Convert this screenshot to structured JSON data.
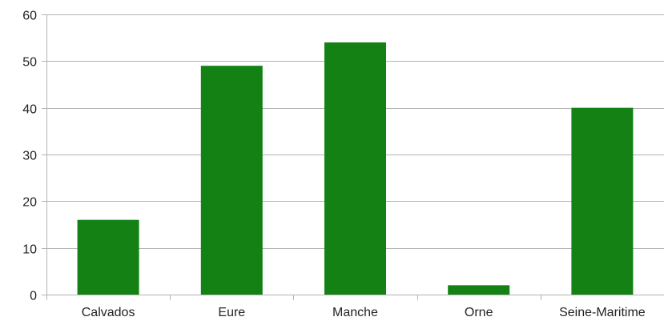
{
  "chart_data": {
    "type": "bar",
    "categories": [
      "Calvados",
      "Eure",
      "Manche",
      "Orne",
      "Seine-Maritime"
    ],
    "values": [
      16,
      49,
      54,
      2,
      40
    ],
    "title": "",
    "xlabel": "",
    "ylabel": "",
    "ylim": [
      0,
      60
    ],
    "yticks": [
      "0",
      "10",
      "20",
      "30",
      "40",
      "50",
      "60"
    ],
    "grid": true,
    "legend": "none",
    "bar_color": "#138113",
    "grid_color": "#b3b3b3"
  }
}
